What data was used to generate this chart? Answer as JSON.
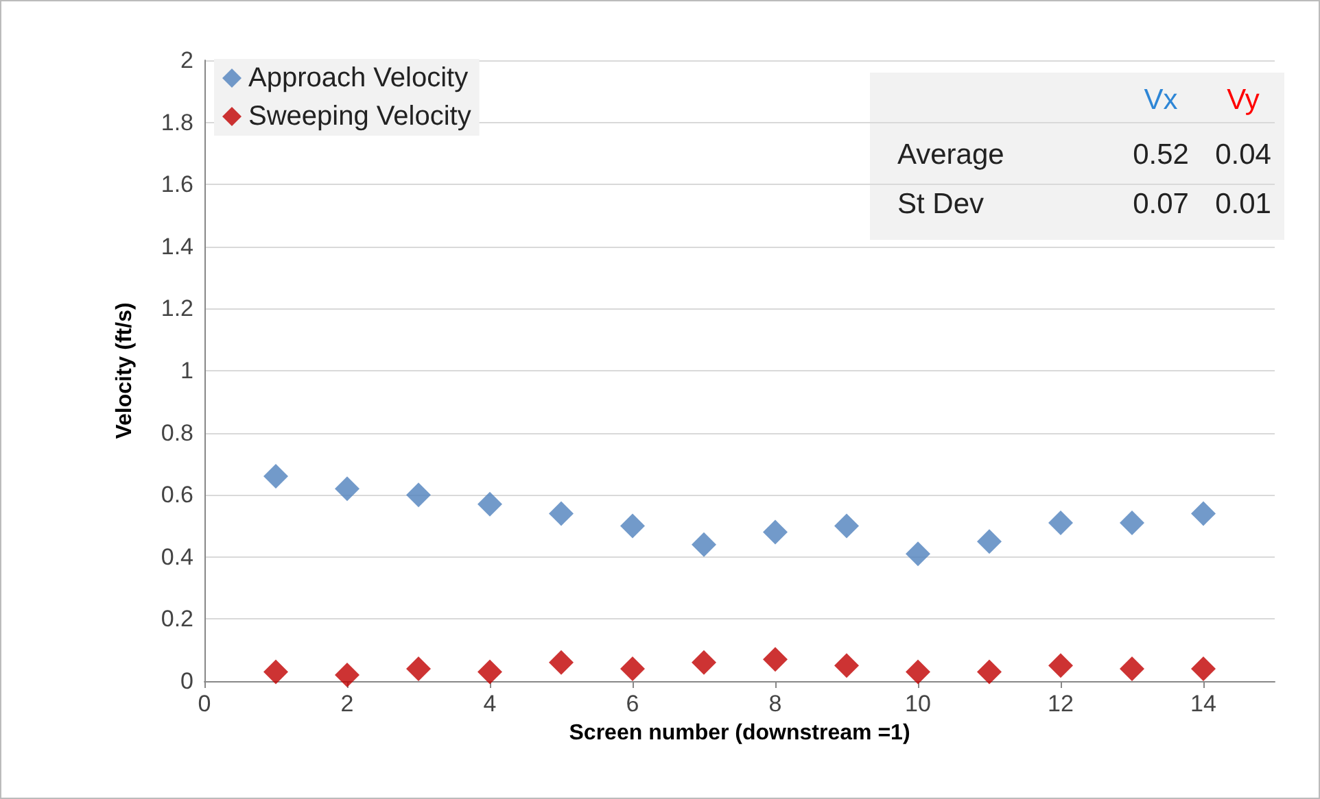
{
  "chart_data": {
    "type": "scatter",
    "xlabel": "Screen number (downstream =1)",
    "ylabel": "Velocity (ft/s)",
    "x": [
      1,
      2,
      3,
      4,
      5,
      6,
      7,
      8,
      9,
      10,
      11,
      12,
      13,
      14
    ],
    "series": [
      {
        "name": "Approach Velocity",
        "color": "#4f81bd",
        "values": [
          0.66,
          0.62,
          0.6,
          0.57,
          0.54,
          0.5,
          0.44,
          0.48,
          0.5,
          0.41,
          0.45,
          0.51,
          0.51,
          0.54
        ]
      },
      {
        "name": "Sweeping Velocity",
        "color": "#c00000",
        "values": [
          0.03,
          0.02,
          0.04,
          0.03,
          0.06,
          0.04,
          0.06,
          0.07,
          0.05,
          0.03,
          0.03,
          0.05,
          0.04,
          0.04
        ]
      }
    ],
    "xlim": [
      0,
      15
    ],
    "xticks": [
      0,
      2,
      4,
      6,
      8,
      10,
      12,
      14
    ],
    "ylim": [
      0,
      2
    ],
    "yticks": [
      0,
      0.2,
      0.4,
      0.6,
      0.8,
      1,
      1.2,
      1.4,
      1.6,
      1.8,
      2
    ],
    "grid": "y",
    "legend": "top left",
    "marker": "diamond",
    "annotations": [
      "Vx",
      "Vy",
      "Average",
      "0.52",
      "0.04",
      "St Dev",
      "0.07",
      "0.01"
    ]
  }
}
